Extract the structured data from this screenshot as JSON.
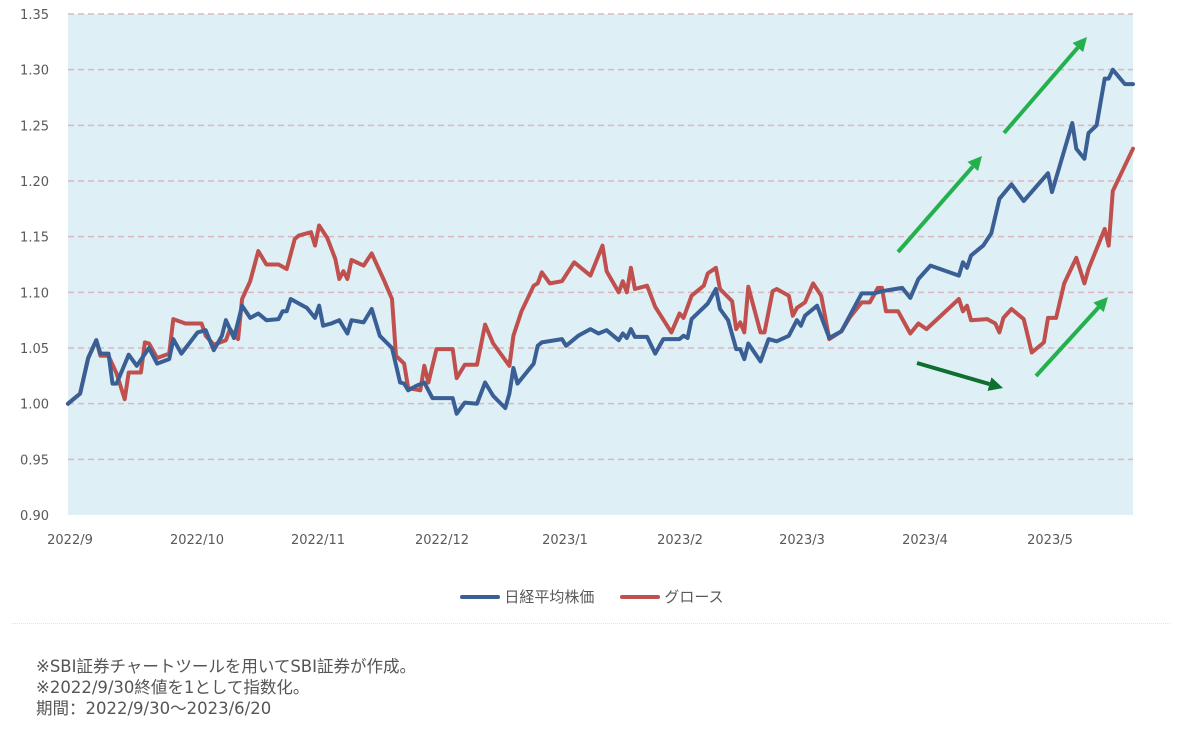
{
  "chart_data": {
    "type": "line",
    "title": "",
    "xlabel": "",
    "ylabel": "",
    "ylim": [
      0.9,
      1.35
    ],
    "yticks": [
      "0.90",
      "0.95",
      "1.00",
      "1.05",
      "1.10",
      "1.15",
      "1.20",
      "1.25",
      "1.30",
      "1.35"
    ],
    "xtick_labels": [
      "2022/9",
      "2022/10",
      "2022/11",
      "2022/12",
      "2023/1",
      "2023/2",
      "2023/3",
      "2023/4",
      "2023/5"
    ],
    "grid": "horizontal dashed",
    "legend_position": "bottom",
    "plot_background": "#deeff5",
    "series": [
      {
        "name": "日経平均株価",
        "color": "#3a5f95",
        "points": [
          [
            "2022-09-30",
            1.0
          ],
          [
            "2022-10-03",
            1.009
          ],
          [
            "2022-10-05",
            1.041
          ],
          [
            "2022-10-07",
            1.057
          ],
          [
            "2022-10-08",
            1.045
          ],
          [
            "2022-10-10",
            1.045
          ],
          [
            "2022-10-11",
            1.018
          ],
          [
            "2022-10-12",
            1.018
          ],
          [
            "2022-10-15",
            1.044
          ],
          [
            "2022-10-17",
            1.034
          ],
          [
            "2022-10-20",
            1.05
          ],
          [
            "2022-10-22",
            1.036
          ],
          [
            "2022-10-25",
            1.04
          ],
          [
            "2022-10-26",
            1.058
          ],
          [
            "2022-10-28",
            1.045
          ],
          [
            "2022-11-01",
            1.064
          ],
          [
            "2022-11-03",
            1.066
          ],
          [
            "2022-11-05",
            1.048
          ],
          [
            "2022-11-07",
            1.061
          ],
          [
            "2022-11-08",
            1.075
          ],
          [
            "2022-11-10",
            1.059
          ],
          [
            "2022-11-12",
            1.088
          ],
          [
            "2022-11-14",
            1.077
          ],
          [
            "2022-11-16",
            1.081
          ],
          [
            "2022-11-18",
            1.075
          ],
          [
            "2022-11-21",
            1.076
          ],
          [
            "2022-11-22",
            1.083
          ],
          [
            "2022-11-23",
            1.083
          ],
          [
            "2022-11-24",
            1.094
          ],
          [
            "2022-11-26",
            1.09
          ],
          [
            "2022-11-28",
            1.086
          ],
          [
            "2022-11-30",
            1.077
          ],
          [
            "2022-12-01",
            1.088
          ],
          [
            "2022-12-02",
            1.07
          ],
          [
            "2022-12-04",
            1.072
          ],
          [
            "2022-12-06",
            1.075
          ],
          [
            "2022-12-08",
            1.063
          ],
          [
            "2022-12-09",
            1.075
          ],
          [
            "2022-12-12",
            1.073
          ],
          [
            "2022-12-14",
            1.085
          ],
          [
            "2022-12-16",
            1.061
          ],
          [
            "2022-12-19",
            1.05
          ],
          [
            "2022-12-21",
            1.019
          ],
          [
            "2022-12-22",
            1.018
          ],
          [
            "2022-12-23",
            1.012
          ],
          [
            "2022-12-25",
            1.016
          ],
          [
            "2022-12-27",
            1.019
          ],
          [
            "2022-12-29",
            1.005
          ],
          [
            "2023-01-03",
            1.005
          ],
          [
            "2023-01-04",
            0.991
          ],
          [
            "2023-01-06",
            1.001
          ],
          [
            "2023-01-09",
            1.0
          ],
          [
            "2023-01-11",
            1.019
          ],
          [
            "2023-01-13",
            1.007
          ],
          [
            "2023-01-16",
            0.996
          ],
          [
            "2023-01-17",
            1.009
          ],
          [
            "2023-01-18",
            1.032
          ],
          [
            "2023-01-19",
            1.018
          ],
          [
            "2023-01-23",
            1.036
          ],
          [
            "2023-01-24",
            1.052
          ],
          [
            "2023-01-25",
            1.055
          ],
          [
            "2023-01-30",
            1.058
          ],
          [
            "2023-01-31",
            1.052
          ],
          [
            "2023-02-03",
            1.061
          ],
          [
            "2023-02-06",
            1.067
          ],
          [
            "2023-02-08",
            1.063
          ],
          [
            "2023-02-10",
            1.066
          ],
          [
            "2023-02-13",
            1.057
          ],
          [
            "2023-02-14",
            1.063
          ],
          [
            "2023-02-15",
            1.059
          ],
          [
            "2023-02-16",
            1.067
          ],
          [
            "2023-02-17",
            1.06
          ],
          [
            "2023-02-20",
            1.06
          ],
          [
            "2023-02-22",
            1.045
          ],
          [
            "2023-02-24",
            1.058
          ],
          [
            "2023-02-28",
            1.058
          ],
          [
            "2023-03-01",
            1.061
          ],
          [
            "2023-03-02",
            1.059
          ],
          [
            "2023-03-03",
            1.076
          ],
          [
            "2023-03-07",
            1.09
          ],
          [
            "2023-03-09",
            1.103
          ],
          [
            "2023-03-10",
            1.085
          ],
          [
            "2023-03-12",
            1.075
          ],
          [
            "2023-03-14",
            1.049
          ],
          [
            "2023-03-15",
            1.049
          ],
          [
            "2023-03-16",
            1.04
          ],
          [
            "2023-03-17",
            1.054
          ],
          [
            "2023-03-20",
            1.038
          ],
          [
            "2023-03-22",
            1.058
          ],
          [
            "2023-03-24",
            1.056
          ],
          [
            "2023-03-27",
            1.061
          ],
          [
            "2023-03-29",
            1.075
          ],
          [
            "2023-03-30",
            1.07
          ],
          [
            "2023-03-31",
            1.079
          ],
          [
            "2023-04-03",
            1.088
          ],
          [
            "2023-04-06",
            1.059
          ],
          [
            "2023-04-09",
            1.065
          ],
          [
            "2023-04-14",
            1.099
          ],
          [
            "2023-04-17",
            1.099
          ],
          [
            "2023-04-19",
            1.101
          ],
          [
            "2023-04-24",
            1.104
          ],
          [
            "2023-04-26",
            1.095
          ],
          [
            "2023-04-28",
            1.112
          ],
          [
            "2023-05-01",
            1.124
          ],
          [
            "2023-05-08",
            1.115
          ],
          [
            "2023-05-09",
            1.127
          ],
          [
            "2023-05-10",
            1.122
          ],
          [
            "2023-05-11",
            1.133
          ],
          [
            "2023-05-14",
            1.142
          ],
          [
            "2023-05-16",
            1.153
          ],
          [
            "2023-05-18",
            1.184
          ],
          [
            "2023-05-21",
            1.197
          ],
          [
            "2023-05-24",
            1.182
          ],
          [
            "2023-05-30",
            1.207
          ],
          [
            "2023-05-31",
            1.19
          ],
          [
            "2023-06-05",
            1.252
          ],
          [
            "2023-06-06",
            1.229
          ],
          [
            "2023-06-08",
            1.22
          ],
          [
            "2023-06-09",
            1.243
          ],
          [
            "2023-06-11",
            1.25
          ],
          [
            "2023-06-13",
            1.292
          ],
          [
            "2023-06-14",
            1.292
          ],
          [
            "2023-06-15",
            1.3
          ],
          [
            "2023-06-18",
            1.287
          ],
          [
            "2023-06-20",
            1.287
          ]
        ]
      },
      {
        "name": "グロース",
        "color": "#c0504d",
        "points": [
          [
            "2022-09-30",
            1.0
          ],
          [
            "2022-10-03",
            1.009
          ],
          [
            "2022-10-05",
            1.041
          ],
          [
            "2022-10-07",
            1.057
          ],
          [
            "2022-10-08",
            1.043
          ],
          [
            "2022-10-10",
            1.043
          ],
          [
            "2022-10-12",
            1.027
          ],
          [
            "2022-10-14",
            1.004
          ],
          [
            "2022-10-15",
            1.028
          ],
          [
            "2022-10-18",
            1.028
          ],
          [
            "2022-10-19",
            1.055
          ],
          [
            "2022-10-20",
            1.054
          ],
          [
            "2022-10-22",
            1.041
          ],
          [
            "2022-10-25",
            1.045
          ],
          [
            "2022-10-26",
            1.076
          ],
          [
            "2022-10-29",
            1.072
          ],
          [
            "2022-11-02",
            1.072
          ],
          [
            "2022-11-03",
            1.061
          ],
          [
            "2022-11-05",
            1.053
          ],
          [
            "2022-11-08",
            1.057
          ],
          [
            "2022-11-09",
            1.067
          ],
          [
            "2022-11-11",
            1.058
          ],
          [
            "2022-11-12",
            1.094
          ],
          [
            "2022-11-14",
            1.11
          ],
          [
            "2022-11-16",
            1.137
          ],
          [
            "2022-11-18",
            1.125
          ],
          [
            "2022-11-21",
            1.125
          ],
          [
            "2022-11-23",
            1.121
          ],
          [
            "2022-11-25",
            1.148
          ],
          [
            "2022-11-26",
            1.151
          ],
          [
            "2022-11-29",
            1.154
          ],
          [
            "2022-11-30",
            1.142
          ],
          [
            "2022-12-01",
            1.16
          ],
          [
            "2022-12-03",
            1.149
          ],
          [
            "2022-12-05",
            1.13
          ],
          [
            "2022-12-06",
            1.112
          ],
          [
            "2022-12-07",
            1.119
          ],
          [
            "2022-12-08",
            1.112
          ],
          [
            "2022-12-09",
            1.129
          ],
          [
            "2022-12-12",
            1.124
          ],
          [
            "2022-12-14",
            1.135
          ],
          [
            "2022-12-17",
            1.111
          ],
          [
            "2022-12-19",
            1.094
          ],
          [
            "2022-12-20",
            1.043
          ],
          [
            "2022-12-22",
            1.036
          ],
          [
            "2022-12-23",
            1.014
          ],
          [
            "2022-12-26",
            1.012
          ],
          [
            "2022-12-27",
            1.034
          ],
          [
            "2022-12-28",
            1.019
          ],
          [
            "2022-12-30",
            1.049
          ],
          [
            "2023-01-03",
            1.049
          ],
          [
            "2023-01-04",
            1.023
          ],
          [
            "2023-01-06",
            1.035
          ],
          [
            "2023-01-09",
            1.035
          ],
          [
            "2023-01-11",
            1.071
          ],
          [
            "2023-01-13",
            1.054
          ],
          [
            "2023-01-17",
            1.034
          ],
          [
            "2023-01-18",
            1.061
          ],
          [
            "2023-01-20",
            1.083
          ],
          [
            "2023-01-23",
            1.106
          ],
          [
            "2023-01-24",
            1.108
          ],
          [
            "2023-01-25",
            1.118
          ],
          [
            "2023-01-27",
            1.108
          ],
          [
            "2023-01-30",
            1.11
          ],
          [
            "2023-02-02",
            1.127
          ],
          [
            "2023-02-06",
            1.115
          ],
          [
            "2023-02-09",
            1.142
          ],
          [
            "2023-02-10",
            1.119
          ],
          [
            "2023-02-13",
            1.1
          ],
          [
            "2023-02-14",
            1.11
          ],
          [
            "2023-02-15",
            1.1
          ],
          [
            "2023-02-16",
            1.122
          ],
          [
            "2023-02-17",
            1.103
          ],
          [
            "2023-02-20",
            1.106
          ],
          [
            "2023-02-22",
            1.087
          ],
          [
            "2023-02-26",
            1.064
          ],
          [
            "2023-02-28",
            1.081
          ],
          [
            "2023-03-01",
            1.077
          ],
          [
            "2023-03-03",
            1.097
          ],
          [
            "2023-03-06",
            1.106
          ],
          [
            "2023-03-07",
            1.117
          ],
          [
            "2023-03-09",
            1.122
          ],
          [
            "2023-03-10",
            1.103
          ],
          [
            "2023-03-13",
            1.092
          ],
          [
            "2023-03-14",
            1.067
          ],
          [
            "2023-03-15",
            1.073
          ],
          [
            "2023-03-16",
            1.064
          ],
          [
            "2023-03-17",
            1.105
          ],
          [
            "2023-03-20",
            1.064
          ],
          [
            "2023-03-21",
            1.064
          ],
          [
            "2023-03-23",
            1.101
          ],
          [
            "2023-03-24",
            1.103
          ],
          [
            "2023-03-27",
            1.097
          ],
          [
            "2023-03-28",
            1.079
          ],
          [
            "2023-03-29",
            1.086
          ],
          [
            "2023-03-31",
            1.091
          ],
          [
            "2023-04-02",
            1.108
          ],
          [
            "2023-04-04",
            1.097
          ],
          [
            "2023-04-06",
            1.058
          ],
          [
            "2023-04-09",
            1.065
          ],
          [
            "2023-04-11",
            1.077
          ],
          [
            "2023-04-14",
            1.091
          ],
          [
            "2023-04-16",
            1.091
          ],
          [
            "2023-04-18",
            1.104
          ],
          [
            "2023-04-19",
            1.104
          ],
          [
            "2023-04-20",
            1.083
          ],
          [
            "2023-04-23",
            1.083
          ],
          [
            "2023-04-26",
            1.063
          ],
          [
            "2023-04-28",
            1.072
          ],
          [
            "2023-04-30",
            1.067
          ],
          [
            "2023-05-08",
            1.094
          ],
          [
            "2023-05-09",
            1.083
          ],
          [
            "2023-05-10",
            1.088
          ],
          [
            "2023-05-11",
            1.075
          ],
          [
            "2023-05-15",
            1.076
          ],
          [
            "2023-05-17",
            1.072
          ],
          [
            "2023-05-18",
            1.064
          ],
          [
            "2023-05-19",
            1.077
          ],
          [
            "2023-05-21",
            1.085
          ],
          [
            "2023-05-24",
            1.076
          ],
          [
            "2023-05-26",
            1.046
          ],
          [
            "2023-05-29",
            1.055
          ],
          [
            "2023-05-30",
            1.077
          ],
          [
            "2023-06-01",
            1.077
          ],
          [
            "2023-06-03",
            1.108
          ],
          [
            "2023-06-06",
            1.131
          ],
          [
            "2023-06-08",
            1.108
          ],
          [
            "2023-06-09",
            1.121
          ],
          [
            "2023-06-13",
            1.157
          ],
          [
            "2023-06-14",
            1.142
          ],
          [
            "2023-06-15",
            1.191
          ],
          [
            "2023-06-20",
            1.229
          ]
        ]
      }
    ],
    "annotations": {
      "arrows": [
        {
          "direction": "up",
          "color": "#22b14c"
        },
        {
          "direction": "up",
          "color": "#22b14c"
        },
        {
          "direction": "down",
          "color": "#0d7030"
        },
        {
          "direction": "up",
          "color": "#22b14c"
        }
      ]
    }
  },
  "legend": {
    "items": [
      {
        "label": "日経平均株価",
        "color": "#3a5f95"
      },
      {
        "label": "グロース",
        "color": "#c0504d"
      }
    ]
  },
  "notes": {
    "line1": "※SBI証券チャートツールを用いてSBI証券が作成。",
    "line2": "※2022/9/30終値を1として指数化。",
    "line3": "期間：2022/9/30～2023/6/20"
  }
}
